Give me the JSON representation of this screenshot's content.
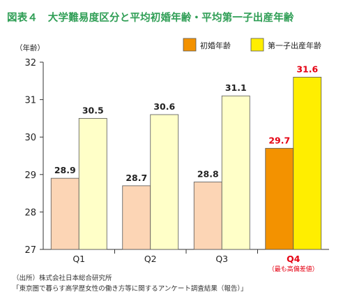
{
  "title": "図表４　大学難易度区分と平均初婚年齢・平均第一子出産年齢",
  "source_lines": [
    "（出所）株式会社日本総合研究所",
    "「東京圏で暮らす高学歴女性の働き方等に関するアンケート調査結果（報告）」"
  ],
  "chart_data": {
    "type": "bar",
    "ylabel": "（年齢）",
    "ylim": [
      27,
      32
    ],
    "yticks": [
      27,
      28,
      29,
      30,
      31,
      32
    ],
    "categories": [
      {
        "label": "Q1",
        "sublabel": "",
        "highlight": false
      },
      {
        "label": "Q2",
        "sublabel": "",
        "highlight": false
      },
      {
        "label": "Q3",
        "sublabel": "",
        "highlight": false
      },
      {
        "label": "Q4",
        "sublabel": "（最も高偏差値）",
        "highlight": true
      }
    ],
    "series": [
      {
        "name": "初婚年齢",
        "values": [
          28.9,
          28.7,
          28.8,
          29.7
        ],
        "color": "#fcd5b5",
        "highlight_color": "#f39200"
      },
      {
        "name": "第一子出産年齢",
        "values": [
          30.5,
          30.6,
          31.1,
          31.6
        ],
        "color": "#ffffc8",
        "highlight_color": "#ffee00"
      }
    ],
    "label_color": "#222222",
    "highlight_label_color": "#e50012",
    "legend_position": "top-right"
  }
}
